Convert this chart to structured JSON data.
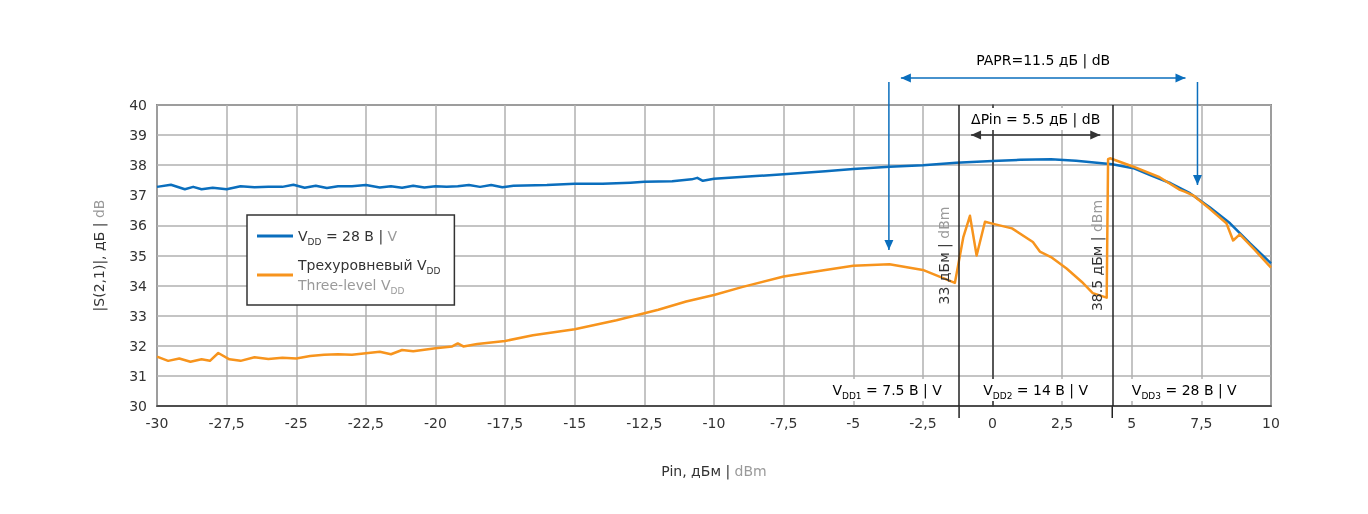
{
  "chart_data": {
    "type": "line",
    "xlabel": "Pin, дБм | dBm",
    "ylabel": "|S(2,1)|, дБ | dB",
    "xlim": [
      -30,
      10
    ],
    "ylim": [
      30,
      40
    ],
    "xticks": [
      {
        "value": -30,
        "label": "-30"
      },
      {
        "value": -27.5,
        "label": "-27,5"
      },
      {
        "value": -25,
        "label": "-25"
      },
      {
        "value": -22.5,
        "label": "-22,5"
      },
      {
        "value": -20,
        "label": "-20"
      },
      {
        "value": -17.5,
        "label": "-17,5"
      },
      {
        "value": -15,
        "label": "-15"
      },
      {
        "value": -12.5,
        "label": "-12,5"
      },
      {
        "value": -10,
        "label": "-10"
      },
      {
        "value": -7.5,
        "label": "-7,5"
      },
      {
        "value": -5,
        "label": "-5"
      },
      {
        "value": -2.5,
        "label": "-2,5"
      },
      {
        "value": 0,
        "label": "0"
      },
      {
        "value": 2.5,
        "label": "2,5"
      },
      {
        "value": 5,
        "label": "5"
      },
      {
        "value": 7.5,
        "label": "7,5"
      },
      {
        "value": 10,
        "label": "10"
      }
    ],
    "yticks": [
      30,
      31,
      32,
      33,
      34,
      35,
      36,
      37,
      38,
      39,
      40
    ],
    "grid": true,
    "legend": "left",
    "marker": "none",
    "series": [
      {
        "name": "V$_{DD}$ = 28 В | V",
        "color": "#0a6ebd",
        "x": [
          -30,
          -29.5,
          -29,
          -28.7,
          -28.4,
          -28,
          -27.5,
          -27,
          -26.5,
          -26,
          -25.5,
          -25.1,
          -24.7,
          -24.3,
          -23.9,
          -23.5,
          -23,
          -22.5,
          -22,
          -21.6,
          -21.2,
          -20.8,
          -20.4,
          -20,
          -19.6,
          -19.2,
          -18.8,
          -18.4,
          -18,
          -17.6,
          -17.2,
          -16,
          -15,
          -14,
          -13,
          -12.5,
          -11.5,
          -10.8,
          -10.6,
          -10.4,
          -10,
          -8.5,
          -7.5,
          -6,
          -5,
          -3.7,
          -2.5,
          -1.3,
          0,
          1,
          2.1,
          3,
          4.3,
          5.06,
          5.66,
          6.4,
          7.09,
          7.8,
          8.53,
          9.25,
          10
        ],
        "values": [
          37.28,
          37.35,
          37.2,
          37.28,
          37.2,
          37.25,
          37.2,
          37.3,
          37.27,
          37.28,
          37.28,
          37.35,
          37.25,
          37.32,
          37.24,
          37.3,
          37.3,
          37.34,
          37.26,
          37.3,
          37.25,
          37.32,
          37.26,
          37.3,
          37.28,
          37.3,
          37.34,
          37.28,
          37.34,
          37.27,
          37.32,
          37.34,
          37.38,
          37.38,
          37.42,
          37.45,
          37.47,
          37.53,
          37.58,
          37.48,
          37.55,
          37.64,
          37.7,
          37.8,
          37.87,
          37.95,
          38.0,
          38.08,
          38.14,
          38.18,
          38.2,
          38.15,
          38.03,
          37.9,
          37.67,
          37.4,
          37.07,
          36.6,
          36.07,
          35.4,
          34.74
        ]
      },
      {
        "name": "Трехуровневый V$_{DD}$\nThree-level V$_{DD}$",
        "color": "#f7941d",
        "x": [
          -30,
          -29.6,
          -29.2,
          -28.8,
          -28.4,
          -28.1,
          -27.8,
          -27.4,
          -27,
          -26.5,
          -26,
          -25.5,
          -25,
          -24.5,
          -24,
          -23.5,
          -23,
          -22.5,
          -22,
          -21.6,
          -21.2,
          -20.8,
          -20,
          -19.4,
          -19.2,
          -19,
          -18.5,
          -17.5,
          -16.5,
          -15,
          -13.5,
          -12.5,
          -12,
          -11,
          -10,
          -9,
          -7.5,
          -6,
          -5,
          -3.7,
          -2.5,
          -1.35,
          -1.05,
          -0.81,
          -0.57,
          -0.27,
          0.03,
          0.7,
          1.45,
          1.7,
          2.1,
          2.66,
          3.2,
          3.6,
          4.1,
          4.15,
          4.22,
          5.06,
          6,
          6.73,
          6.9,
          7.2,
          7.8,
          8.4,
          8.64,
          8.88,
          9.4,
          10
        ],
        "values": [
          31.64,
          31.5,
          31.58,
          31.47,
          31.55,
          31.5,
          31.76,
          31.55,
          31.5,
          31.62,
          31.56,
          31.6,
          31.58,
          31.66,
          31.7,
          31.72,
          31.7,
          31.75,
          31.8,
          31.72,
          31.86,
          31.82,
          31.92,
          31.98,
          32.08,
          31.98,
          32.06,
          32.16,
          32.35,
          32.55,
          32.85,
          33.08,
          33.2,
          33.47,
          33.69,
          33.95,
          34.3,
          34.52,
          34.66,
          34.71,
          34.52,
          34.09,
          35.6,
          36.32,
          35.0,
          36.12,
          36.05,
          35.9,
          35.45,
          35.13,
          34.95,
          34.57,
          34.13,
          33.75,
          33.6,
          38.2,
          38.23,
          37.95,
          37.6,
          37.18,
          37.12,
          37.0,
          36.55,
          36.07,
          35.5,
          35.7,
          35.2,
          34.6
        ]
      }
    ],
    "ref_lines": [
      {
        "axis": "x",
        "value": -1.2,
        "label": "33 дБм | dBm",
        "color": "#222222"
      },
      {
        "axis": "x",
        "value": 4.3,
        "label": "38.5 дБм | dBm",
        "color": "#222222"
      }
    ],
    "annotations": [
      "PAPR=11.5 дБ | dB",
      "ΔPin = 5.5 дБ | dB",
      "V$_{DD1}$ = 7.5 В | V",
      "V$_{DD2}$ = 14 В | V",
      "V$_{DD3}$ = 28 В | V"
    ]
  }
}
